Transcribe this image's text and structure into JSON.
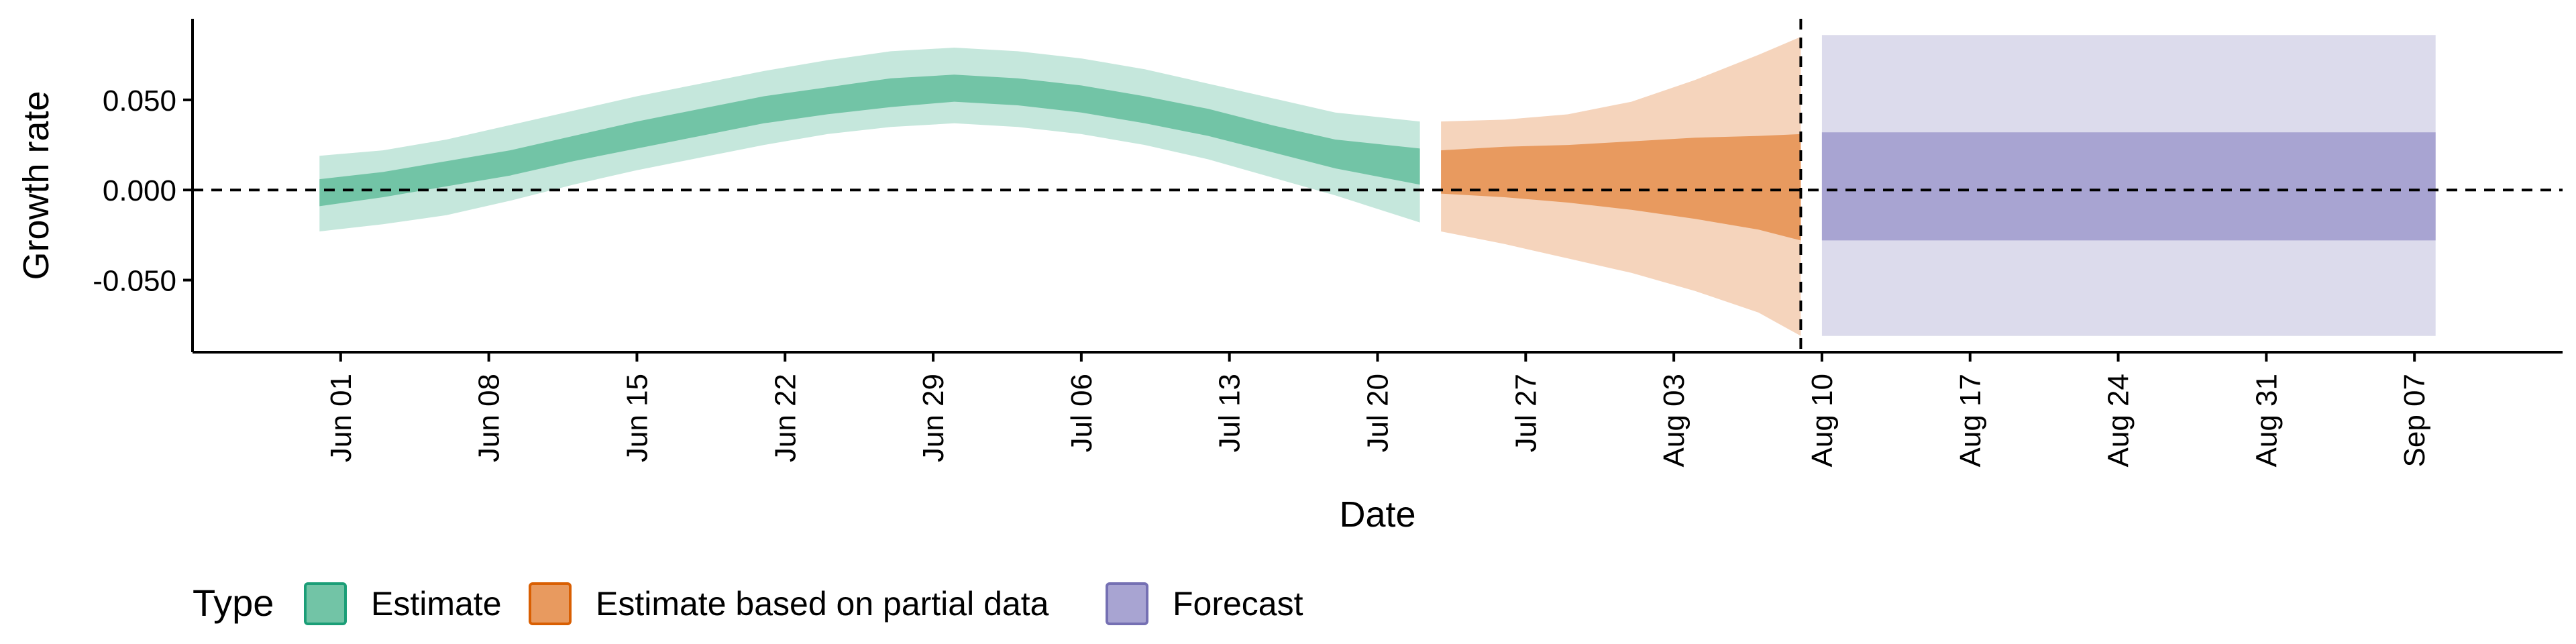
{
  "chart_data": {
    "type": "area",
    "xlabel": "Date",
    "ylabel": "Growth rate",
    "x_ticks": [
      "2020-06-01",
      "2020-06-08",
      "2020-06-15",
      "2020-06-22",
      "2020-06-29",
      "2020-07-06",
      "2020-07-13",
      "2020-07-20",
      "2020-07-27",
      "2020-08-03",
      "2020-08-10",
      "2020-08-17",
      "2020-08-24",
      "2020-08-31",
      "2020-09-07"
    ],
    "x_tick_labels": [
      "Jun 01",
      "Jun 08",
      "Jun 15",
      "Jun 22",
      "Jun 29",
      "Jul 06",
      "Jul 13",
      "Jul 20",
      "Jul 27",
      "Aug 03",
      "Aug 10",
      "Aug 17",
      "Aug 24",
      "Aug 31",
      "Sep 07"
    ],
    "xlim": [
      "2020-05-25",
      "2020-09-14"
    ],
    "y_ticks": [
      -0.05,
      0,
      0.05
    ],
    "y_tick_labels": [
      "-0.050",
      "0.000",
      "0.050"
    ],
    "ylim": [
      -0.09,
      0.095
    ],
    "reference_lines": {
      "horizontal_y": 0,
      "vertical_date": "2020-08-09",
      "style": "dashed"
    },
    "grid": false,
    "legend": {
      "title": "Type",
      "placement": "bottom-left",
      "entries": [
        {
          "label": "Estimate",
          "fill": "#72c4a6",
          "border": "#1b9e77"
        },
        {
          "label": "Estimate based on partial data",
          "fill": "#e89a5f",
          "border": "#d95f02"
        },
        {
          "label": "Forecast",
          "fill": "#a8a4d2",
          "border": "#7570b3"
        }
      ]
    },
    "series": [
      {
        "name": "Estimate",
        "outer_color": "#c5e7dc",
        "inner_color": "#72c4a6",
        "points": [
          {
            "x": "2020-05-31",
            "outer": [
              -0.023,
              0.019
            ],
            "inner": [
              -0.009,
              0.006
            ]
          },
          {
            "x": "2020-06-03",
            "outer": [
              -0.019,
              0.022
            ],
            "inner": [
              -0.004,
              0.01
            ]
          },
          {
            "x": "2020-06-06",
            "outer": [
              -0.014,
              0.028
            ],
            "inner": [
              0.002,
              0.016
            ]
          },
          {
            "x": "2020-06-09",
            "outer": [
              -0.006,
              0.036
            ],
            "inner": [
              0.008,
              0.022
            ]
          },
          {
            "x": "2020-06-12",
            "outer": [
              0.003,
              0.044
            ],
            "inner": [
              0.016,
              0.03
            ]
          },
          {
            "x": "2020-06-15",
            "outer": [
              0.011,
              0.052
            ],
            "inner": [
              0.023,
              0.038
            ]
          },
          {
            "x": "2020-06-18",
            "outer": [
              0.018,
              0.059
            ],
            "inner": [
              0.03,
              0.045
            ]
          },
          {
            "x": "2020-06-21",
            "outer": [
              0.025,
              0.066
            ],
            "inner": [
              0.037,
              0.052
            ]
          },
          {
            "x": "2020-06-24",
            "outer": [
              0.031,
              0.072
            ],
            "inner": [
              0.042,
              0.057
            ]
          },
          {
            "x": "2020-06-27",
            "outer": [
              0.035,
              0.077
            ],
            "inner": [
              0.046,
              0.062
            ]
          },
          {
            "x": "2020-06-30",
            "outer": [
              0.037,
              0.079
            ],
            "inner": [
              0.049,
              0.064
            ]
          },
          {
            "x": "2020-07-03",
            "outer": [
              0.035,
              0.077
            ],
            "inner": [
              0.047,
              0.062
            ]
          },
          {
            "x": "2020-07-06",
            "outer": [
              0.031,
              0.073
            ],
            "inner": [
              0.043,
              0.058
            ]
          },
          {
            "x": "2020-07-09",
            "outer": [
              0.025,
              0.067
            ],
            "inner": [
              0.037,
              0.052
            ]
          },
          {
            "x": "2020-07-12",
            "outer": [
              0.017,
              0.059
            ],
            "inner": [
              0.03,
              0.045
            ]
          },
          {
            "x": "2020-07-15",
            "outer": [
              0.007,
              0.051
            ],
            "inner": [
              0.021,
              0.036
            ]
          },
          {
            "x": "2020-07-18",
            "outer": [
              -0.003,
              0.043
            ],
            "inner": [
              0.012,
              0.028
            ]
          },
          {
            "x": "2020-07-22",
            "outer": [
              -0.018,
              0.038
            ],
            "inner": [
              0.003,
              0.023
            ]
          }
        ]
      },
      {
        "name": "Estimate based on partial data",
        "outer_color": "#f5d4bc",
        "inner_color": "#e89a5f",
        "points": [
          {
            "x": "2020-07-23",
            "outer": [
              -0.023,
              0.038
            ],
            "inner": [
              -0.002,
              0.022
            ]
          },
          {
            "x": "2020-07-26",
            "outer": [
              -0.03,
              0.039
            ],
            "inner": [
              -0.004,
              0.024
            ]
          },
          {
            "x": "2020-07-29",
            "outer": [
              -0.038,
              0.042
            ],
            "inner": [
              -0.007,
              0.025
            ]
          },
          {
            "x": "2020-08-01",
            "outer": [
              -0.046,
              0.049
            ],
            "inner": [
              -0.011,
              0.027
            ]
          },
          {
            "x": "2020-08-04",
            "outer": [
              -0.056,
              0.061
            ],
            "inner": [
              -0.016,
              0.029
            ]
          },
          {
            "x": "2020-08-07",
            "outer": [
              -0.068,
              0.075
            ],
            "inner": [
              -0.022,
              0.03
            ]
          },
          {
            "x": "2020-08-09",
            "outer": [
              -0.081,
              0.085
            ],
            "inner": [
              -0.028,
              0.031
            ]
          }
        ]
      },
      {
        "name": "Forecast",
        "outer_color": "#dcdbec",
        "inner_color": "#a8a4d2",
        "points": [
          {
            "x": "2020-08-10",
            "outer": [
              -0.081,
              0.086
            ],
            "inner": [
              -0.028,
              0.032
            ]
          },
          {
            "x": "2020-09-08",
            "outer": [
              -0.081,
              0.086
            ],
            "inner": [
              -0.028,
              0.032
            ]
          }
        ]
      }
    ]
  }
}
